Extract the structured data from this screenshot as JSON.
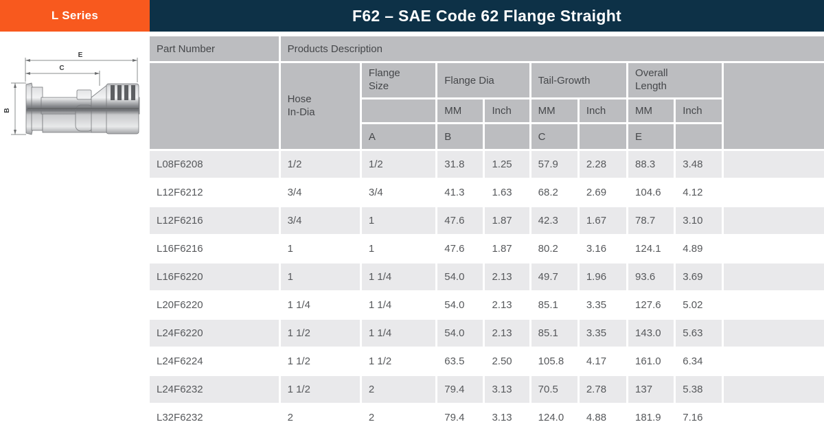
{
  "badge": {
    "label": "L Series"
  },
  "header": {
    "title": "F62 – SAE Code 62 Flange Straight"
  },
  "colors": {
    "accent_orange": "#f8591e",
    "title_navy": "#0d3147",
    "header_gray": "#bcbdc0",
    "row_alt_gray": "#e9e9eb"
  },
  "diagram": {
    "description": "side-view technical drawing of SAE code 62 flange fitting",
    "dim_e": "E",
    "dim_c": "C",
    "dim_b": "B"
  },
  "table": {
    "header": {
      "part_number": "Part Number",
      "products_description": "Products Description",
      "hose_in_dia": "Hose\nIn-Dia",
      "flange_size": "Flange\nSize",
      "flange_dia": "Flange Dia",
      "tail_growth": "Tail-Growth",
      "overall_length": "Overall\nLength",
      "unit_mm": "MM",
      "unit_inch": "Inch",
      "letter_a": "A",
      "letter_b": "B",
      "letter_c": "C",
      "letter_e": "E"
    },
    "rows": [
      [
        "L08F6208",
        "1/2",
        "1/2",
        "31.8",
        "1.25",
        "57.9",
        "2.28",
        "88.3",
        "3.48"
      ],
      [
        "L12F6212",
        "3/4",
        "3/4",
        "41.3",
        "1.63",
        "68.2",
        "2.69",
        "104.6",
        "4.12"
      ],
      [
        "L12F6216",
        "3/4",
        "1",
        "47.6",
        "1.87",
        "42.3",
        "1.67",
        "78.7",
        "3.10"
      ],
      [
        "L16F6216",
        "1",
        "1",
        "47.6",
        "1.87",
        "80.2",
        "3.16",
        "124.1",
        "4.89"
      ],
      [
        "L16F6220",
        "1",
        "1 1/4",
        "54.0",
        "2.13",
        "49.7",
        "1.96",
        "93.6",
        "3.69"
      ],
      [
        "L20F6220",
        "1 1/4",
        "1 1/4",
        "54.0",
        "2.13",
        "85.1",
        "3.35",
        "127.6",
        "5.02"
      ],
      [
        "L24F6220",
        "1 1/2",
        "1 1/4",
        "54.0",
        "2.13",
        "85.1",
        "3.35",
        "143.0",
        "5.63"
      ],
      [
        "L24F6224",
        "1 1/2",
        "1 1/2",
        "63.5",
        "2.50",
        "105.8",
        "4.17",
        "161.0",
        "6.34"
      ],
      [
        "L24F6232",
        "1 1/2",
        "2",
        "79.4",
        "3.13",
        "70.5",
        "2.78",
        "137",
        "5.38"
      ],
      [
        "L32F6232",
        "2",
        "2",
        "79.4",
        "3.13",
        "124.0",
        "4.88",
        "181.9",
        "7.16"
      ]
    ]
  }
}
